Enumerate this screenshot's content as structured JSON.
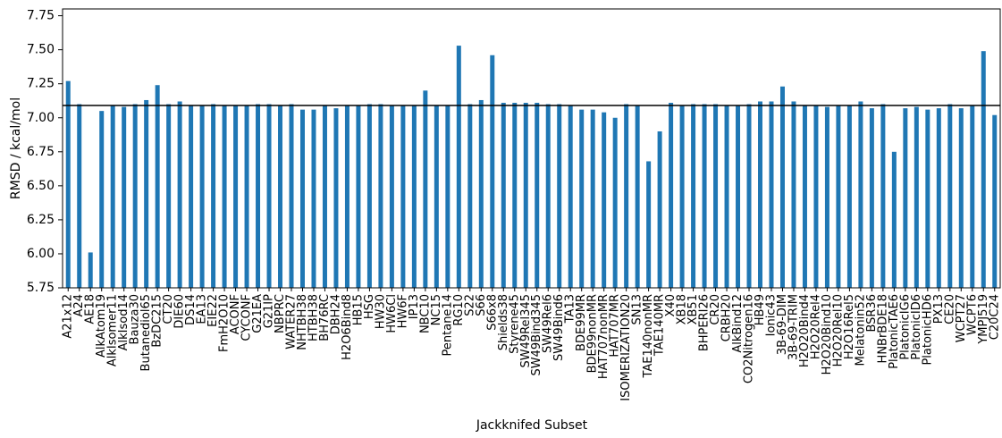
{
  "chart_data": {
    "type": "bar",
    "x_label": "Jackknifed Subset",
    "y_label": "RMSD / kcal/mol",
    "categories": [
      "A21x12",
      "A24",
      "AE18",
      "AlkAtom19",
      "AlkIsomer11",
      "AlkIsod14",
      "Bauza30",
      "Butanediol65",
      "BzDC215",
      "CT20",
      "DIE60",
      "DS14",
      "EA13",
      "EIE22",
      "FmH2O10",
      "ACONF",
      "CYCONF",
      "G21EA",
      "G21IP",
      "NBPRC",
      "WATER27",
      "NHTBH38",
      "HTBH38",
      "BH76RC",
      "DBH24",
      "H2O6Bind8",
      "HB15",
      "HSG",
      "HW30",
      "HW6Cl",
      "HW6F",
      "IP13",
      "NBC10",
      "NC15",
      "Pentane14",
      "RG10",
      "S22",
      "S66",
      "S66x8",
      "Shields38",
      "Styrene45",
      "SW49Rel345",
      "SW49Bind345",
      "SW49Rel6",
      "SW49Bind6",
      "TA13",
      "BDE99MR",
      "BDE99nonMR",
      "HAT707nonMR",
      "HAT707MR",
      "ISOMERIZATION20",
      "SN13",
      "TAE140nonMR",
      "TAE140MR",
      "X40",
      "XB18",
      "XB51",
      "BHPERI26",
      "CR20",
      "CRBH20",
      "AlkBind12",
      "CO2Nitrogen16",
      "HB49",
      "Ionic43",
      "3B-69-DIM",
      "3B-69-TRIM",
      "H2O20Bind4",
      "H2O20Rel4",
      "H2O20Bind10",
      "H2O20Rel10",
      "H2O16Rel5",
      "Melatonin52",
      "BSR36",
      "HNBrBDE18",
      "PlatonicTAE6",
      "PlatonicIG6",
      "PlatonicID6",
      "PlatonicHD6",
      "PX13",
      "CE20",
      "WCPT27",
      "WCPT6",
      "YMPJ519",
      "C20C24"
    ],
    "values": [
      7.27,
      7.1,
      6.01,
      7.05,
      7.09,
      7.08,
      7.1,
      7.13,
      7.24,
      7.1,
      7.12,
      7.09,
      7.09,
      7.1,
      7.09,
      7.09,
      7.09,
      7.1,
      7.1,
      7.09,
      7.1,
      7.06,
      7.06,
      7.09,
      7.07,
      7.09,
      7.09,
      7.1,
      7.1,
      7.09,
      7.09,
      7.09,
      7.2,
      7.09,
      7.09,
      7.53,
      7.1,
      7.13,
      7.46,
      7.11,
      7.11,
      7.11,
      7.11,
      7.1,
      7.1,
      7.09,
      7.06,
      7.06,
      7.04,
      7.0,
      7.1,
      7.09,
      6.68,
      6.9,
      7.11,
      7.09,
      7.1,
      7.1,
      7.1,
      7.09,
      7.09,
      7.1,
      7.12,
      7.12,
      7.23,
      7.12,
      7.09,
      7.09,
      7.08,
      7.09,
      7.09,
      7.12,
      7.07,
      7.1,
      6.75,
      7.07,
      7.08,
      7.06,
      7.07,
      7.1,
      7.07,
      7.09,
      7.49,
      7.02
    ],
    "color": "#1f77b4",
    "hline": 7.09,
    "ylim": [
      5.75,
      7.8
    ],
    "yticks": [
      {
        "value": 5.75,
        "label": "5.75"
      },
      {
        "value": 6.0,
        "label": "6.00"
      },
      {
        "value": 6.25,
        "label": "6.25"
      },
      {
        "value": 6.5,
        "label": "6.50"
      },
      {
        "value": 6.75,
        "label": "6.75"
      },
      {
        "value": 7.0,
        "label": "7.00"
      },
      {
        "value": 7.25,
        "label": "7.25"
      },
      {
        "value": 7.5,
        "label": "7.50"
      },
      {
        "value": 7.75,
        "label": "7.75"
      }
    ],
    "grid": false
  }
}
